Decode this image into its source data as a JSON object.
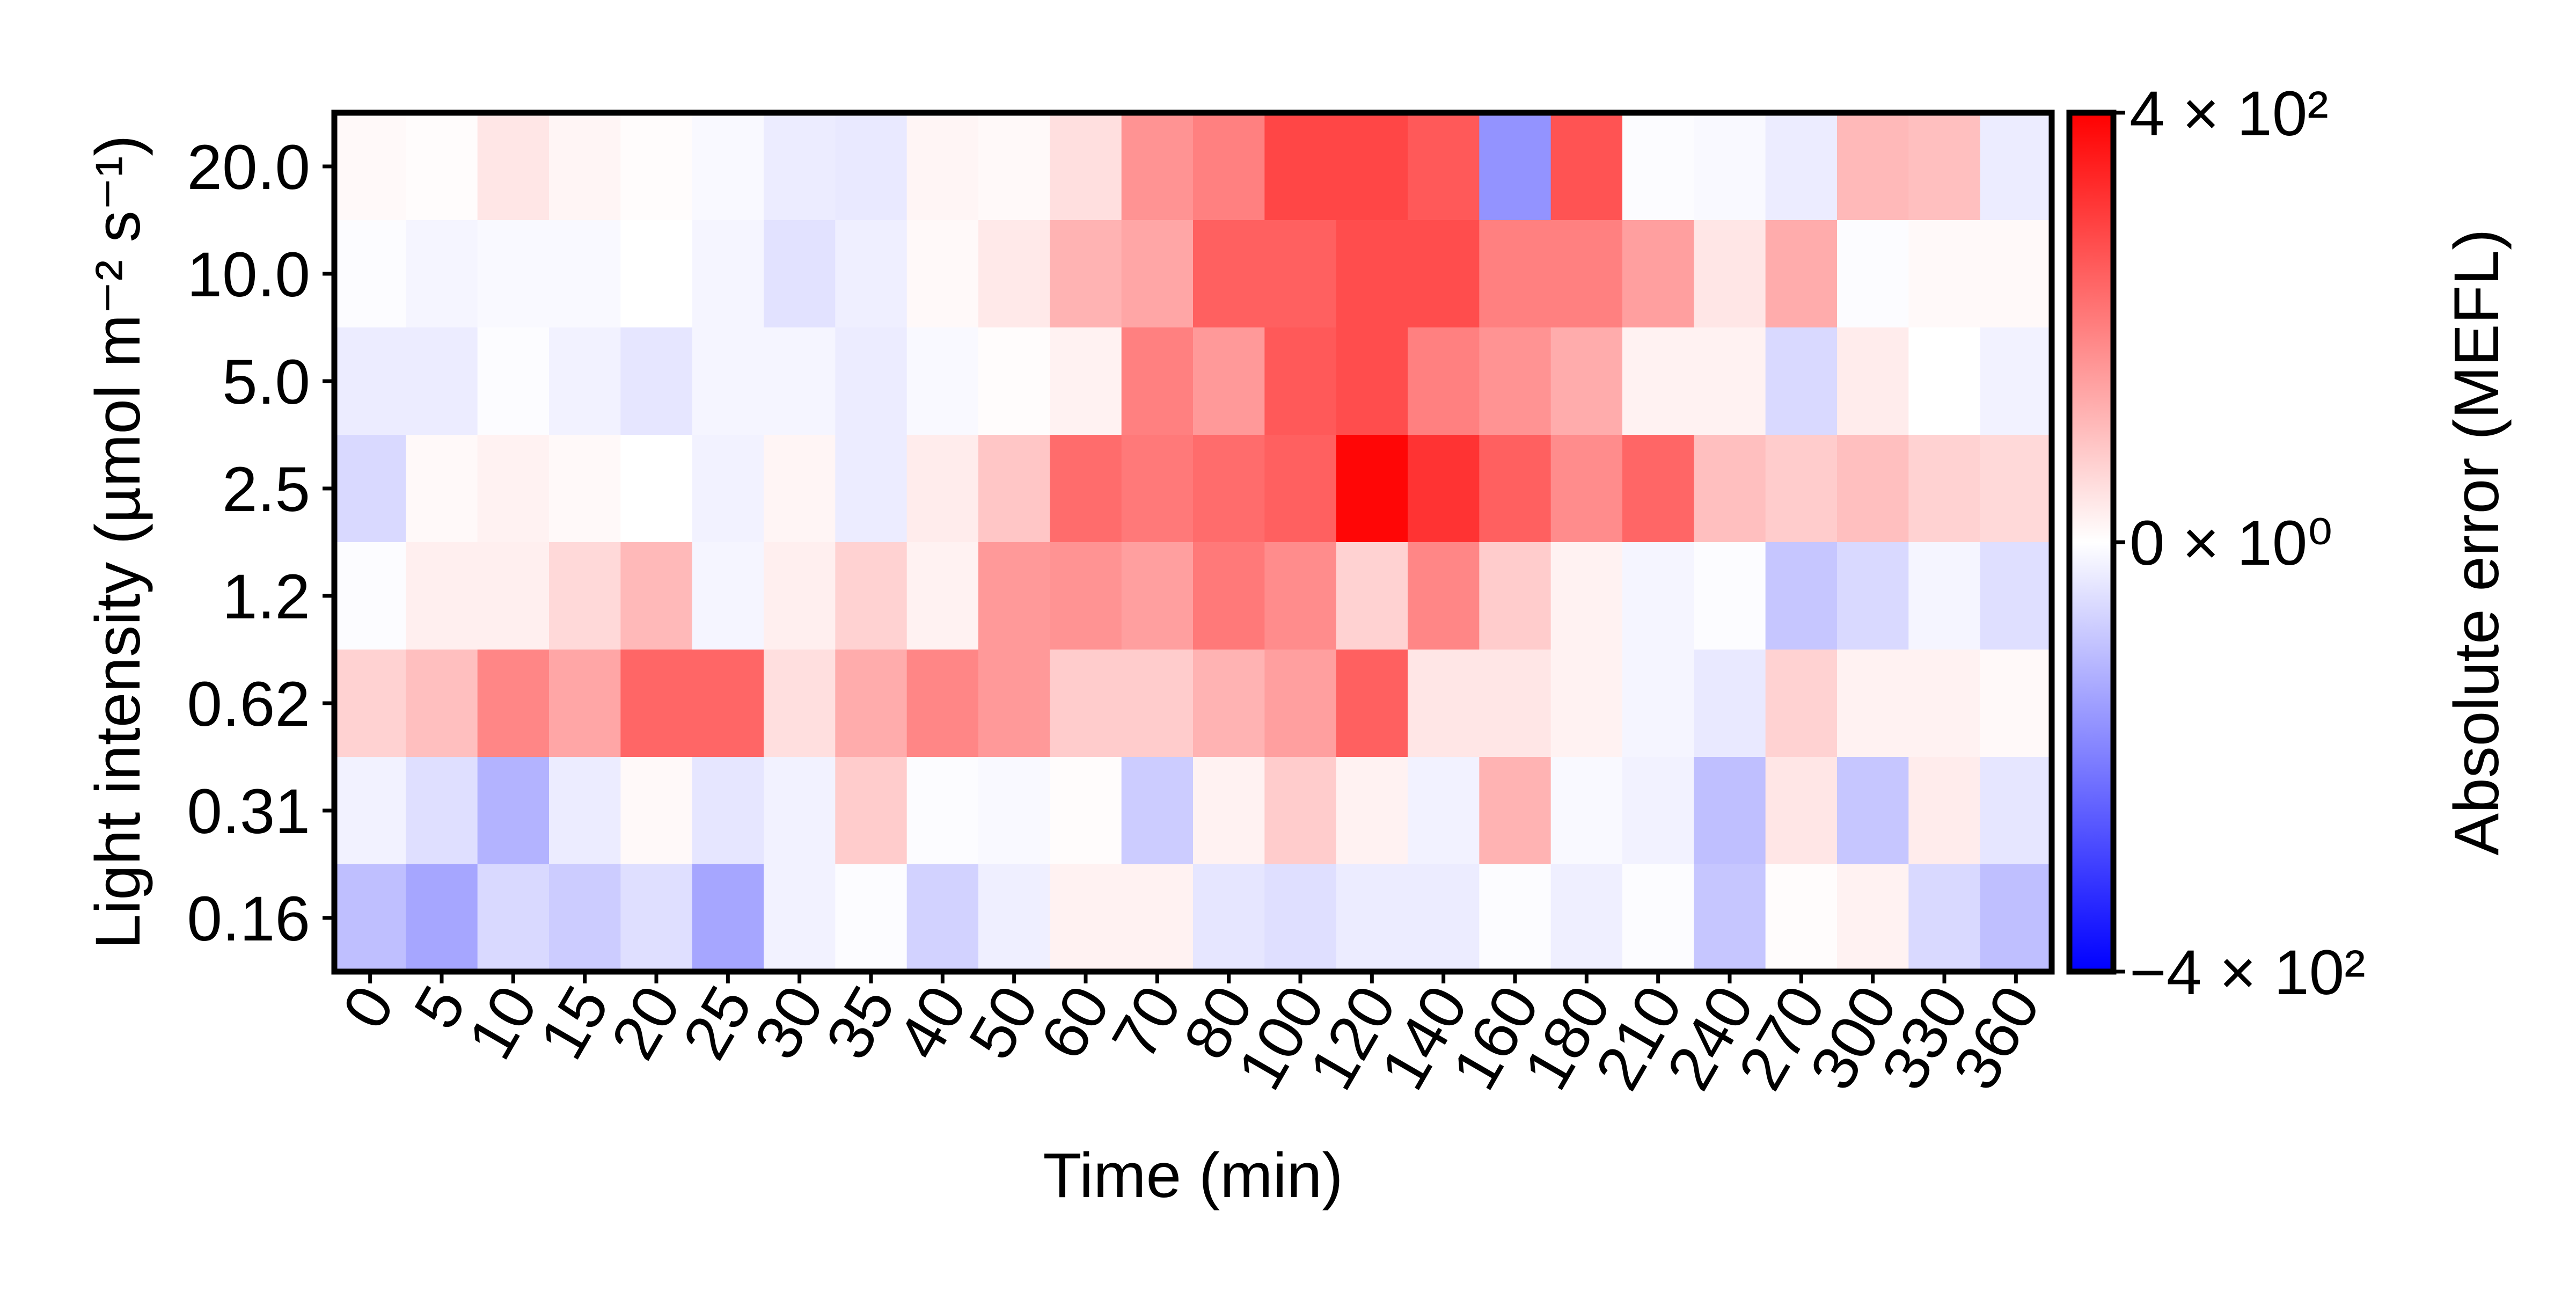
{
  "chart_data": {
    "type": "heatmap",
    "title": "",
    "xlabel": "Time (min)",
    "ylabel": "Light intensity (µmol m⁻² s⁻¹)",
    "x_categories": [
      "0",
      "5",
      "10",
      "15",
      "20",
      "25",
      "30",
      "35",
      "40",
      "50",
      "60",
      "70",
      "80",
      "100",
      "120",
      "140",
      "160",
      "180",
      "210",
      "240",
      "270",
      "300",
      "330",
      "360"
    ],
    "y_categories": [
      "20.0",
      "10.0",
      "5.0",
      "2.5",
      "1.2",
      "0.62",
      "0.31",
      "0.16"
    ],
    "values": [
      [
        10,
        5,
        40,
        15,
        5,
        -10,
        -30,
        -35,
        15,
        10,
        50,
        170,
        200,
        290,
        290,
        260,
        -170,
        270,
        -5,
        -10,
        -30,
        110,
        100,
        -30
      ],
      [
        -5,
        -15,
        -10,
        -10,
        0,
        -15,
        -45,
        -25,
        10,
        35,
        120,
        140,
        250,
        250,
        280,
        280,
        200,
        200,
        150,
        40,
        130,
        -5,
        10,
        10
      ],
      [
        -30,
        -30,
        -5,
        -20,
        -40,
        -15,
        -15,
        -30,
        -10,
        5,
        20,
        200,
        160,
        260,
        280,
        200,
        170,
        130,
        20,
        20,
        -60,
        30,
        0,
        -20
      ],
      [
        -60,
        10,
        20,
        10,
        0,
        -20,
        15,
        -30,
        30,
        90,
        230,
        210,
        230,
        250,
        390,
        320,
        250,
        180,
        240,
        100,
        80,
        100,
        70,
        60
      ],
      [
        -5,
        25,
        25,
        60,
        110,
        -15,
        25,
        70,
        20,
        160,
        170,
        150,
        210,
        180,
        70,
        190,
        80,
        20,
        -15,
        -5,
        -90,
        -60,
        -15,
        -50
      ],
      [
        70,
        100,
        190,
        140,
        240,
        240,
        50,
        130,
        190,
        160,
        80,
        80,
        120,
        150,
        250,
        40,
        40,
        20,
        -15,
        -35,
        70,
        20,
        20,
        10
      ],
      [
        -20,
        -50,
        -120,
        -30,
        10,
        -40,
        -20,
        80,
        -5,
        -10,
        5,
        -80,
        20,
        80,
        20,
        -20,
        120,
        -10,
        -20,
        -100,
        40,
        -90,
        30,
        -40
      ],
      [
        -100,
        -140,
        -60,
        -80,
        -50,
        -140,
        -20,
        -5,
        -70,
        -25,
        20,
        20,
        -40,
        -50,
        -30,
        -30,
        -5,
        -25,
        -5,
        -90,
        5,
        20,
        -60,
        -100
      ]
    ],
    "colorscale": {
      "min": -400,
      "max": 400,
      "min_color": "#0000ff",
      "mid_color": "#ffffff",
      "max_color": "#ff0000"
    },
    "colorbar": {
      "label": "Absolute error (MEFL)",
      "ticks": [
        400,
        0,
        -400
      ],
      "tick_labels": [
        "4 × 10²",
        "0 × 10⁰",
        "−4 × 10²"
      ]
    },
    "grid": false,
    "legend": "none"
  }
}
